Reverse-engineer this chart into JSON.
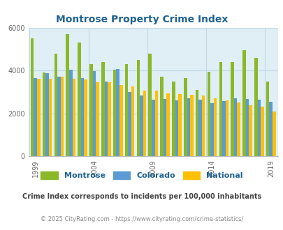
{
  "title": "Montrose Property Crime Index",
  "years": [
    1999,
    2000,
    2001,
    2002,
    2003,
    2004,
    2005,
    2006,
    2007,
    2008,
    2009,
    2010,
    2011,
    2012,
    2013,
    2014,
    2015,
    2016,
    2017,
    2018,
    2019
  ],
  "montrose": [
    5500,
    3900,
    4800,
    5700,
    5300,
    4300,
    4380,
    4050,
    4300,
    4500,
    4800,
    3700,
    3500,
    3650,
    3100,
    3950,
    4380,
    4400,
    4950,
    4600,
    3500
  ],
  "colorado": [
    3650,
    3870,
    3700,
    4050,
    3650,
    3980,
    3500,
    4070,
    3000,
    2850,
    2650,
    2680,
    2600,
    2700,
    2650,
    2490,
    2580,
    2700,
    2680,
    2650,
    2550
  ],
  "national": [
    3620,
    3620,
    3700,
    3620,
    3600,
    3450,
    3450,
    3320,
    3250,
    3050,
    3050,
    2950,
    2900,
    2880,
    2850,
    2700,
    2600,
    2500,
    2380,
    2310,
    2100
  ],
  "bar_colors": {
    "montrose": "#8ab829",
    "colorado": "#5b9bd5",
    "national": "#ffc000"
  },
  "plot_bg": "#e0eff5",
  "ylim": [
    0,
    6000
  ],
  "yticks": [
    0,
    2000,
    4000,
    6000
  ],
  "xtick_labels": [
    "1999",
    "2004",
    "2009",
    "2014",
    "2019"
  ],
  "xtick_year_positions": [
    1999,
    2004,
    2009,
    2014,
    2019
  ],
  "subtitle": "Crime Index corresponds to incidents per 100,000 inhabitants",
  "footer": "© 2025 CityRating.com - https://www.cityrating.com/crime-statistics/",
  "title_color": "#1f6391",
  "subtitle_color": "#444444",
  "footer_color": "#888888",
  "legend_labels": [
    "Montrose",
    "Colorado",
    "National"
  ],
  "grid_color": "#c0d8e4"
}
